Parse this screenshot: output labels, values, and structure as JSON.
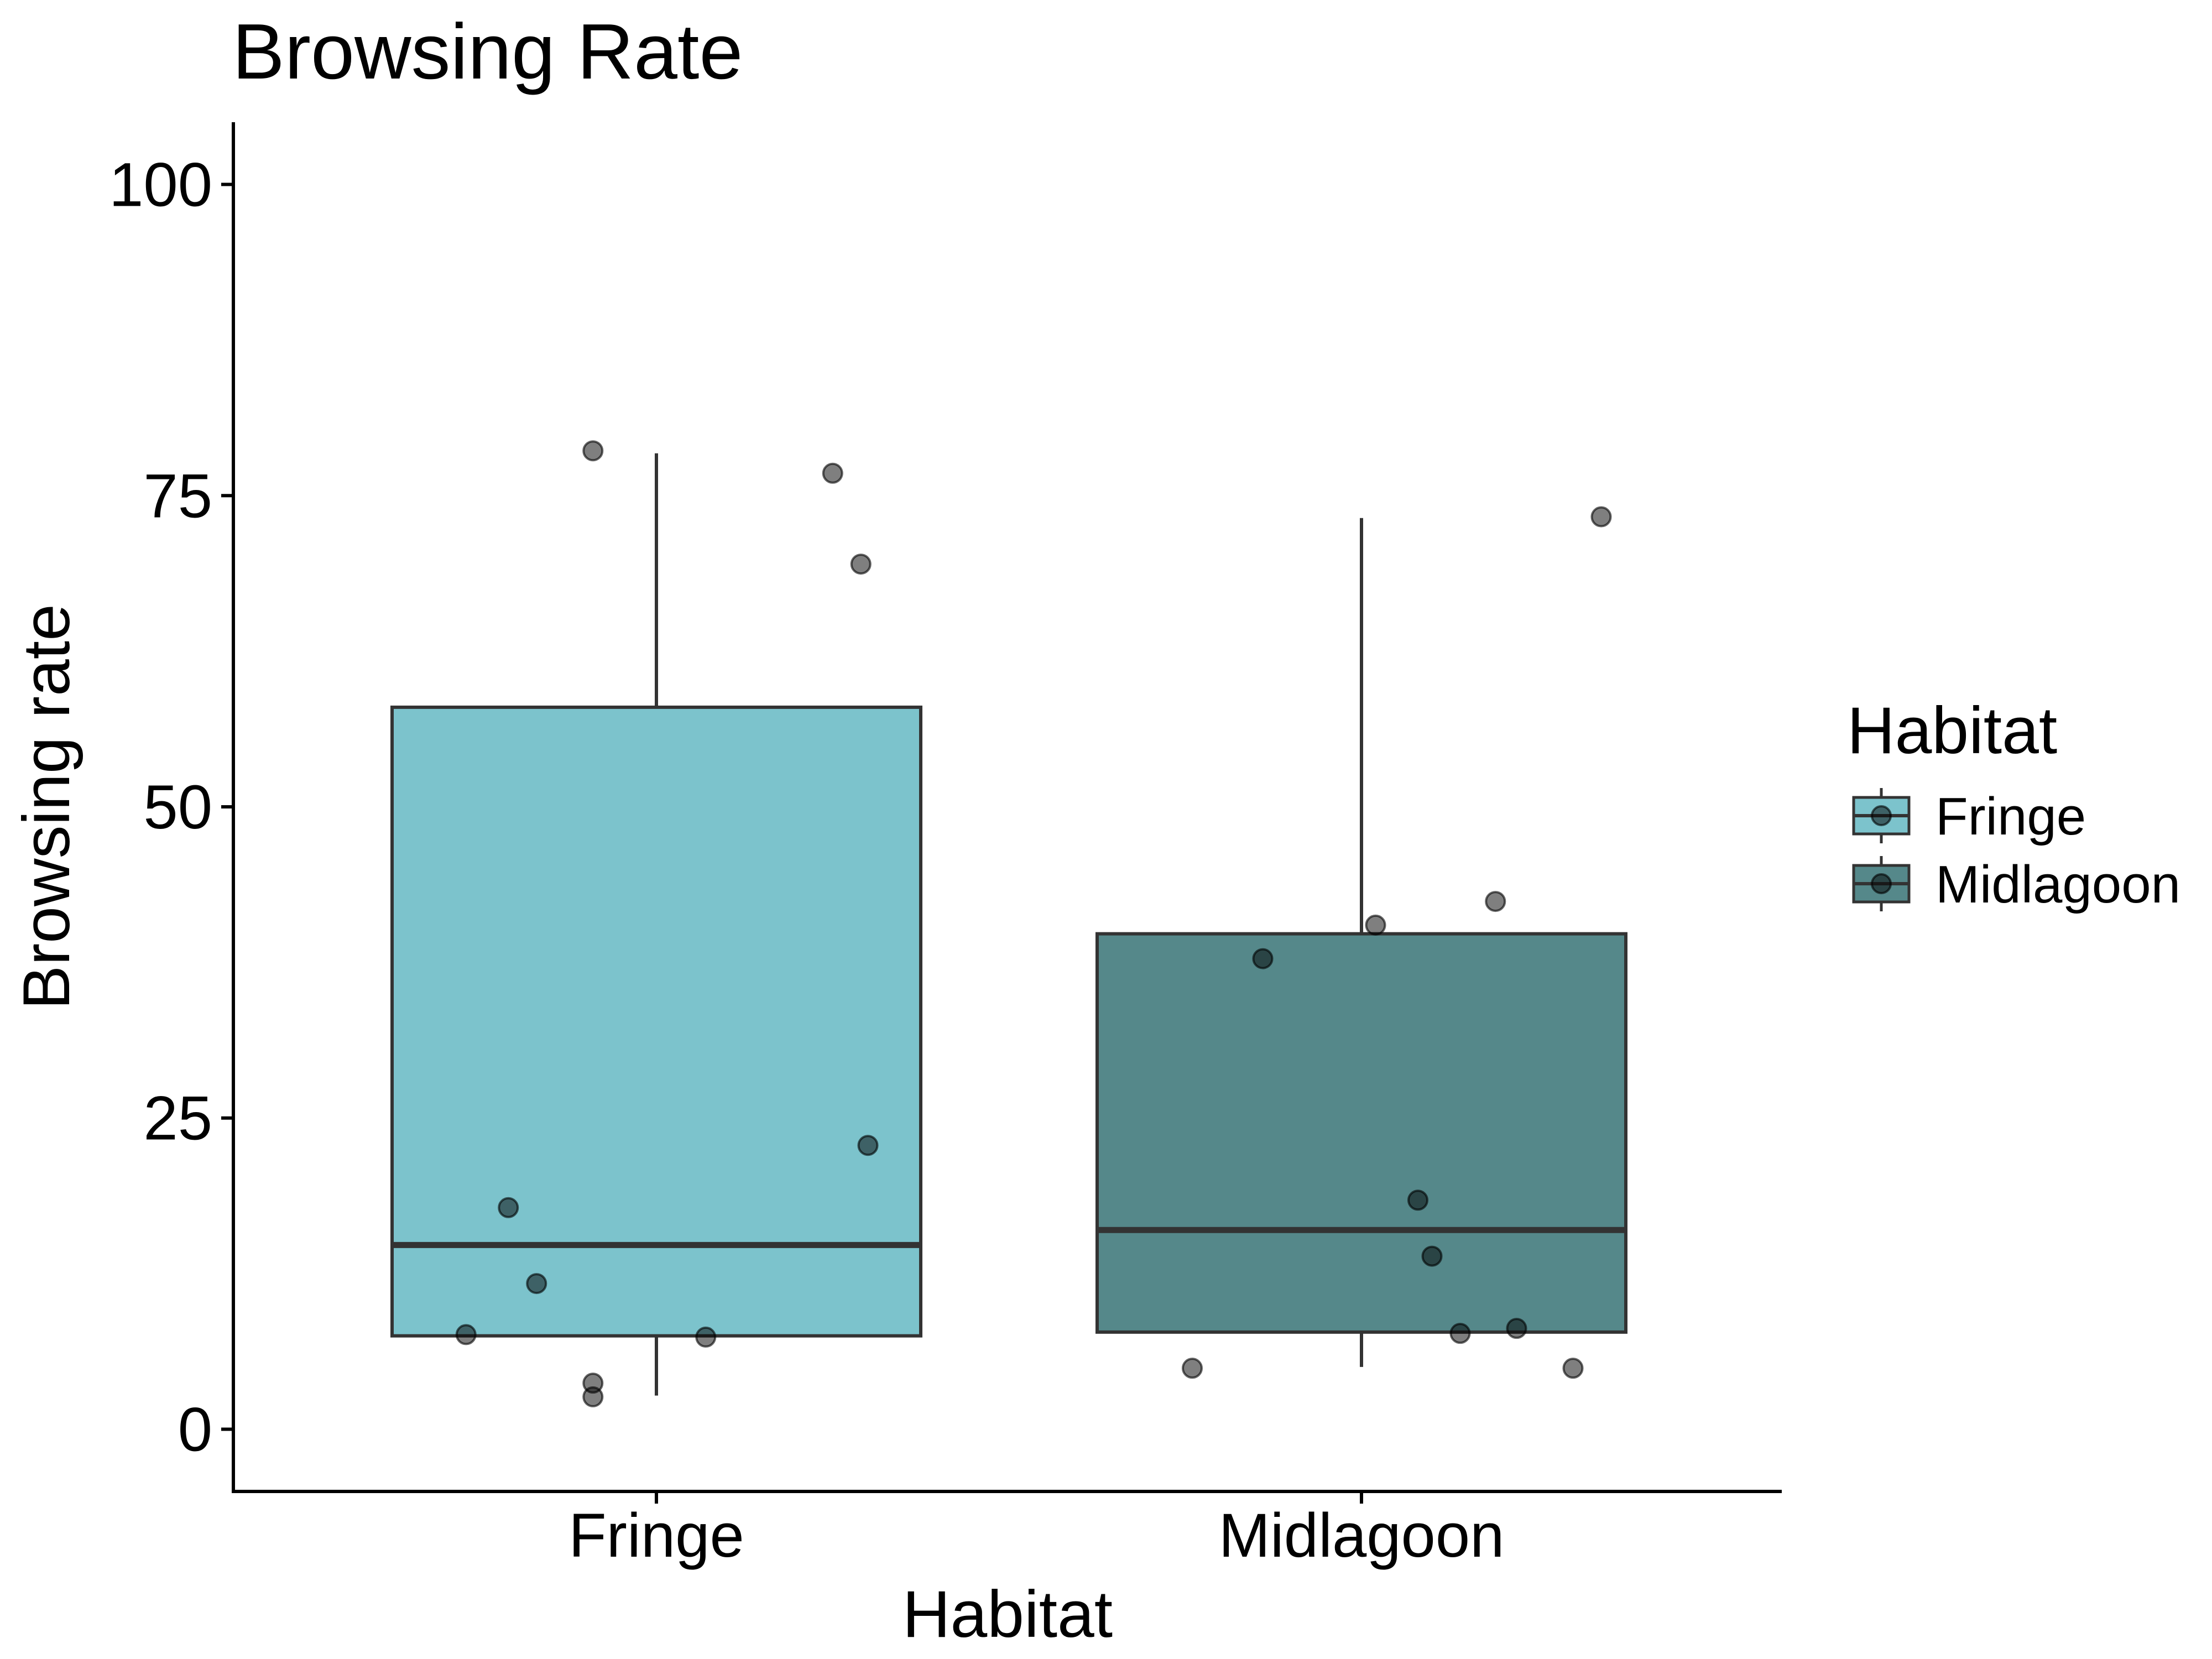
{
  "chart_data": {
    "type": "box",
    "title": "Browsing Rate",
    "xlabel": "Habitat",
    "ylabel": "Browsing rate",
    "ylim": [
      -5,
      105
    ],
    "yticks": [
      0,
      25,
      50,
      75,
      100
    ],
    "grid": false,
    "legend": {
      "title": "Habitat",
      "position": "right",
      "entries": [
        "Fringe",
        "Midlagoon"
      ]
    },
    "categories": [
      "Fringe",
      "Midlagoon"
    ],
    "series": [
      {
        "name": "Fringe",
        "color": "#7cc3cc",
        "box": {
          "whisker_low": 2.7,
          "q1": 7.5,
          "median": 14.8,
          "q3": 58.0,
          "whisker_high": 78.4
        },
        "points": [
          {
            "jitter": -0.09,
            "y": 78.6
          },
          {
            "jitter": 0.25,
            "y": 76.8
          },
          {
            "jitter": 0.29,
            "y": 69.5
          },
          {
            "jitter": 0.3,
            "y": 22.8
          },
          {
            "jitter": -0.21,
            "y": 17.8
          },
          {
            "jitter": -0.17,
            "y": 11.7
          },
          {
            "jitter": -0.27,
            "y": 7.6
          },
          {
            "jitter": 0.07,
            "y": 7.4
          },
          {
            "jitter": -0.09,
            "y": 3.7
          },
          {
            "jitter": -0.09,
            "y": 2.6
          }
        ]
      },
      {
        "name": "Midlagoon",
        "color": "#55888a",
        "box": {
          "whisker_low": 5.0,
          "q1": 7.8,
          "median": 16.0,
          "q3": 39.8,
          "whisker_high": 73.2
        },
        "points": [
          {
            "jitter": 0.34,
            "y": 73.3
          },
          {
            "jitter": 0.19,
            "y": 42.4
          },
          {
            "jitter": 0.02,
            "y": 40.5
          },
          {
            "jitter": -0.14,
            "y": 37.8
          },
          {
            "jitter": 0.08,
            "y": 18.4
          },
          {
            "jitter": 0.1,
            "y": 13.9
          },
          {
            "jitter": 0.22,
            "y": 8.1
          },
          {
            "jitter": 0.14,
            "y": 7.7
          },
          {
            "jitter": -0.24,
            "y": 4.9
          },
          {
            "jitter": 0.3,
            "y": 4.9
          }
        ]
      }
    ]
  }
}
